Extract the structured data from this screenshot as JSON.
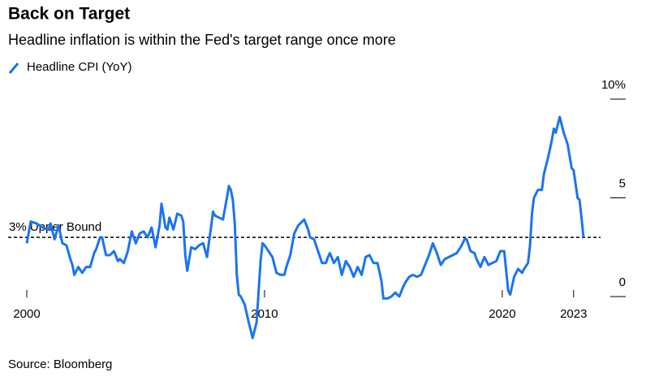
{
  "chart_data": {
    "type": "line",
    "title": "Back on Target",
    "subtitle": "Headline inflation is within the Fed's target range once more",
    "source": "Source: Bloomberg",
    "annotations": [
      {
        "text": "3% Upper Bound",
        "y": 3
      }
    ],
    "xlim": [
      2000,
      2023.417
    ],
    "xticks": [
      2000,
      2010,
      2020,
      2023
    ],
    "ylim": [
      -2,
      10
    ],
    "yticks": [
      {
        "value": 10,
        "label": "10%"
      },
      5,
      0
    ],
    "series": [
      {
        "name": "Headline CPI (YoY)",
        "color": "#1a74f0",
        "x": [
          2000.0,
          2000.167,
          2000.417,
          2000.667,
          2000.917,
          2001.0,
          2001.167,
          2001.333,
          2001.5,
          2001.667,
          2001.833,
          2001.917,
          2002.0,
          2002.167,
          2002.333,
          2002.5,
          2002.667,
          2002.833,
          2002.917,
          2003.083,
          2003.167,
          2003.333,
          2003.5,
          2003.667,
          2003.833,
          2003.917,
          2004.083,
          2004.25,
          2004.417,
          2004.583,
          2004.75,
          2004.917,
          2005.083,
          2005.25,
          2005.417,
          2005.583,
          2005.667,
          2005.833,
          2005.917,
          2006.0,
          2006.167,
          2006.333,
          2006.5,
          2006.583,
          2006.667,
          2006.75,
          2006.917,
          2007.083,
          2007.25,
          2007.417,
          2007.583,
          2007.667,
          2007.75,
          2007.833,
          2007.917,
          2008.083,
          2008.25,
          2008.417,
          2008.5,
          2008.583,
          2008.667,
          2008.75,
          2008.833,
          2008.917,
          2009.0,
          2009.167,
          2009.333,
          2009.5,
          2009.667,
          2009.833,
          2009.917,
          2010.0,
          2010.167,
          2010.333,
          2010.5,
          2010.667,
          2010.833,
          2010.917,
          2011.083,
          2011.25,
          2011.417,
          2011.583,
          2011.667,
          2011.833,
          2011.917,
          2012.083,
          2012.25,
          2012.417,
          2012.583,
          2012.667,
          2012.75,
          2012.917,
          2013.083,
          2013.25,
          2013.417,
          2013.583,
          2013.75,
          2013.917,
          2014.083,
          2014.25,
          2014.417,
          2014.583,
          2014.75,
          2014.917,
          2015.0,
          2015.167,
          2015.333,
          2015.5,
          2015.667,
          2015.833,
          2015.917,
          2016.083,
          2016.25,
          2016.417,
          2016.583,
          2016.75,
          2016.917,
          2017.083,
          2017.25,
          2017.417,
          2017.583,
          2017.75,
          2017.917,
          2018.083,
          2018.25,
          2018.417,
          2018.5,
          2018.667,
          2018.833,
          2018.917,
          2019.083,
          2019.25,
          2019.417,
          2019.583,
          2019.75,
          2019.917,
          2020.083,
          2020.25,
          2020.333,
          2020.5,
          2020.667,
          2020.833,
          2020.917,
          2021.083,
          2021.167,
          2021.25,
          2021.333,
          2021.5,
          2021.667,
          2021.75,
          2021.917,
          2022.083,
          2022.167,
          2022.25,
          2022.417,
          2022.583,
          2022.75,
          2022.917,
          2023.0,
          2023.167,
          2023.25,
          2023.333,
          2023.417
        ],
        "values": [
          2.7,
          3.8,
          3.7,
          3.5,
          3.4,
          3.7,
          2.9,
          3.6,
          2.7,
          2.6,
          1.9,
          1.6,
          1.1,
          1.5,
          1.2,
          1.5,
          1.5,
          2.2,
          2.4,
          3.0,
          3.0,
          2.1,
          2.1,
          2.3,
          1.8,
          1.9,
          1.7,
          2.3,
          3.3,
          2.7,
          3.2,
          3.3,
          3.0,
          3.5,
          2.5,
          3.6,
          4.7,
          3.5,
          3.4,
          4.0,
          3.4,
          4.2,
          4.1,
          3.8,
          2.1,
          1.3,
          2.5,
          2.4,
          2.6,
          2.7,
          2.0,
          2.8,
          3.5,
          4.3,
          4.1,
          4.0,
          3.9,
          5.0,
          5.6,
          5.4,
          4.9,
          3.7,
          1.1,
          0.1,
          0.0,
          -0.4,
          -1.3,
          -2.1,
          -1.3,
          1.8,
          2.7,
          2.6,
          2.3,
          2.0,
          1.2,
          1.1,
          1.1,
          1.5,
          2.1,
          3.2,
          3.6,
          3.8,
          3.9,
          3.4,
          3.0,
          2.9,
          2.3,
          1.7,
          1.7,
          2.0,
          2.2,
          1.7,
          2.0,
          1.1,
          1.8,
          1.5,
          1.0,
          1.5,
          1.1,
          2.0,
          2.1,
          1.7,
          1.7,
          0.8,
          -0.1,
          -0.1,
          0.0,
          0.2,
          0.0,
          0.5,
          0.7,
          1.0,
          1.1,
          1.0,
          1.1,
          1.6,
          2.1,
          2.7,
          2.2,
          1.6,
          1.9,
          2.0,
          2.1,
          2.2,
          2.5,
          2.9,
          2.9,
          2.3,
          2.2,
          1.9,
          1.5,
          2.0,
          1.6,
          1.7,
          1.8,
          2.3,
          2.3,
          0.3,
          0.1,
          1.0,
          1.4,
          1.2,
          1.4,
          1.7,
          2.6,
          4.2,
          5.0,
          5.4,
          5.4,
          6.2,
          7.0,
          7.9,
          8.5,
          8.3,
          9.1,
          8.3,
          7.7,
          6.5,
          6.4,
          5.0,
          4.9,
          4.0,
          3.0
        ]
      }
    ]
  }
}
